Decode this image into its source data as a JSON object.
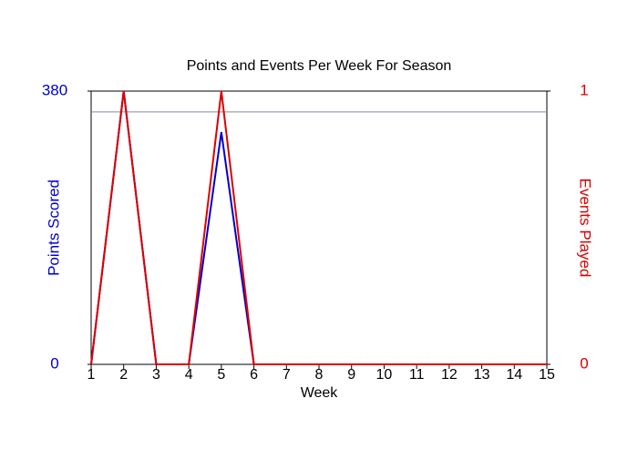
{
  "chart_data": {
    "type": "line",
    "title": "Points and Events Per Week For Season",
    "x_label": "Week",
    "y_label": "Points Scored",
    "y2_label": "Events Played",
    "x": [
      1,
      2,
      3,
      4,
      5,
      6,
      7,
      8,
      9,
      10,
      11,
      12,
      13,
      14,
      15
    ],
    "xlim": [
      1,
      15
    ],
    "xticks": [
      1,
      2,
      3,
      4,
      5,
      6,
      7,
      8,
      9,
      10,
      11,
      12,
      13,
      14,
      15
    ],
    "ylim": [
      0,
      380
    ],
    "yticks": [
      0,
      380
    ],
    "y_color": "#0000cc",
    "y2lim": [
      0,
      1
    ],
    "y2ticks": [
      0,
      1
    ],
    "y2_color": "#dd0000",
    "hline": 351,
    "hline_color": "#8888aa",
    "series": [
      {
        "name": "Points Scored",
        "color": "#0000cc",
        "values": [
          0,
          380,
          0,
          0,
          323,
          0,
          0,
          0,
          0,
          0,
          0,
          0,
          0,
          0,
          0
        ]
      },
      {
        "name": "Events Played",
        "color": "#dd0000",
        "axis": "y2",
        "values": [
          0,
          1,
          0,
          0,
          1,
          0,
          0,
          0,
          0,
          0,
          0,
          0,
          0,
          0,
          0
        ]
      }
    ]
  }
}
